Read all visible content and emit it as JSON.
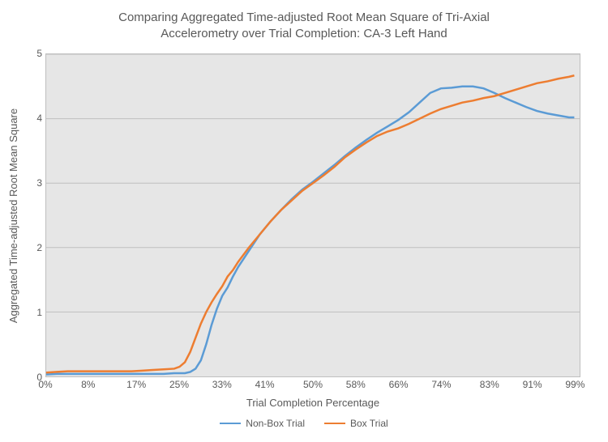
{
  "chart": {
    "type": "line",
    "title_line1": "Comparing Aggregated Time-adjusted Root Mean Square of Tri-Axial",
    "title_line2": "Accelerometry over Trial Completion: CA-3 Left Hand",
    "title_color": "#595959",
    "title_fontsize": 15,
    "background_color": "#ffffff",
    "plot_background_color": "#e6e6e6",
    "grid_color": "#bfbfbf",
    "border_color": "#bfbfbf",
    "xlabel": "Trial Completion Percentage",
    "ylabel": "Aggregated Time-adjusted Root Mean Square",
    "axis_label_color": "#595959",
    "axis_label_fontsize": 13,
    "tick_color": "#595959",
    "tick_fontsize": 12,
    "xlim": [
      0,
      100
    ],
    "ylim": [
      0,
      5
    ],
    "yticks": [
      0,
      1,
      2,
      3,
      4,
      5
    ],
    "xticks": [
      0,
      8,
      17,
      25,
      33,
      41,
      50,
      58,
      66,
      74,
      83,
      91,
      99
    ],
    "xtick_labels": [
      "0%",
      "8%",
      "17%",
      "25%",
      "33%",
      "41%",
      "50%",
      "58%",
      "66%",
      "74%",
      "83%",
      "91%",
      "99%"
    ],
    "line_width": 2.5,
    "series": [
      {
        "name": "Non-Box Trial",
        "color": "#5b9bd5",
        "data": [
          [
            0,
            0.03
          ],
          [
            2,
            0.04
          ],
          [
            4,
            0.04
          ],
          [
            6,
            0.04
          ],
          [
            8,
            0.04
          ],
          [
            10,
            0.04
          ],
          [
            12,
            0.04
          ],
          [
            14,
            0.04
          ],
          [
            16,
            0.04
          ],
          [
            18,
            0.04
          ],
          [
            20,
            0.04
          ],
          [
            22,
            0.04
          ],
          [
            24,
            0.05
          ],
          [
            26,
            0.05
          ],
          [
            27,
            0.07
          ],
          [
            28,
            0.12
          ],
          [
            29,
            0.25
          ],
          [
            30,
            0.5
          ],
          [
            31,
            0.8
          ],
          [
            32,
            1.05
          ],
          [
            33,
            1.25
          ],
          [
            34,
            1.38
          ],
          [
            35,
            1.55
          ],
          [
            36,
            1.7
          ],
          [
            38,
            1.95
          ],
          [
            40,
            2.2
          ],
          [
            42,
            2.4
          ],
          [
            44,
            2.58
          ],
          [
            46,
            2.75
          ],
          [
            48,
            2.9
          ],
          [
            50,
            3.02
          ],
          [
            52,
            3.15
          ],
          [
            54,
            3.28
          ],
          [
            56,
            3.42
          ],
          [
            58,
            3.55
          ],
          [
            60,
            3.67
          ],
          [
            62,
            3.78
          ],
          [
            64,
            3.88
          ],
          [
            66,
            3.98
          ],
          [
            68,
            4.1
          ],
          [
            70,
            4.25
          ],
          [
            72,
            4.4
          ],
          [
            74,
            4.47
          ],
          [
            76,
            4.48
          ],
          [
            78,
            4.5
          ],
          [
            80,
            4.5
          ],
          [
            82,
            4.47
          ],
          [
            84,
            4.4
          ],
          [
            86,
            4.32
          ],
          [
            88,
            4.25
          ],
          [
            90,
            4.18
          ],
          [
            92,
            4.12
          ],
          [
            94,
            4.08
          ],
          [
            96,
            4.05
          ],
          [
            98,
            4.02
          ],
          [
            99,
            4.02
          ]
        ]
      },
      {
        "name": "Box Trial",
        "color": "#ed7d31",
        "data": [
          [
            0,
            0.06
          ],
          [
            2,
            0.07
          ],
          [
            4,
            0.08
          ],
          [
            6,
            0.08
          ],
          [
            8,
            0.08
          ],
          [
            10,
            0.08
          ],
          [
            12,
            0.08
          ],
          [
            14,
            0.08
          ],
          [
            16,
            0.08
          ],
          [
            18,
            0.09
          ],
          [
            20,
            0.1
          ],
          [
            22,
            0.11
          ],
          [
            24,
            0.12
          ],
          [
            25,
            0.15
          ],
          [
            26,
            0.22
          ],
          [
            27,
            0.38
          ],
          [
            28,
            0.6
          ],
          [
            29,
            0.82
          ],
          [
            30,
            1.0
          ],
          [
            31,
            1.15
          ],
          [
            32,
            1.28
          ],
          [
            33,
            1.4
          ],
          [
            34,
            1.55
          ],
          [
            35,
            1.65
          ],
          [
            36,
            1.78
          ],
          [
            38,
            2.0
          ],
          [
            40,
            2.2
          ],
          [
            42,
            2.4
          ],
          [
            44,
            2.58
          ],
          [
            46,
            2.73
          ],
          [
            48,
            2.88
          ],
          [
            50,
            3.0
          ],
          [
            52,
            3.12
          ],
          [
            54,
            3.25
          ],
          [
            56,
            3.4
          ],
          [
            58,
            3.52
          ],
          [
            60,
            3.63
          ],
          [
            62,
            3.73
          ],
          [
            64,
            3.8
          ],
          [
            66,
            3.85
          ],
          [
            68,
            3.92
          ],
          [
            70,
            4.0
          ],
          [
            72,
            4.08
          ],
          [
            74,
            4.15
          ],
          [
            76,
            4.2
          ],
          [
            78,
            4.25
          ],
          [
            80,
            4.28
          ],
          [
            82,
            4.32
          ],
          [
            84,
            4.35
          ],
          [
            86,
            4.4
          ],
          [
            88,
            4.45
          ],
          [
            90,
            4.5
          ],
          [
            92,
            4.55
          ],
          [
            94,
            4.58
          ],
          [
            96,
            4.62
          ],
          [
            98,
            4.65
          ],
          [
            99,
            4.67
          ]
        ]
      }
    ],
    "legend": {
      "position": "bottom",
      "items": [
        {
          "label": "Non-Box Trial",
          "color": "#5b9bd5"
        },
        {
          "label": "Box Trial",
          "color": "#ed7d31"
        }
      ]
    }
  }
}
